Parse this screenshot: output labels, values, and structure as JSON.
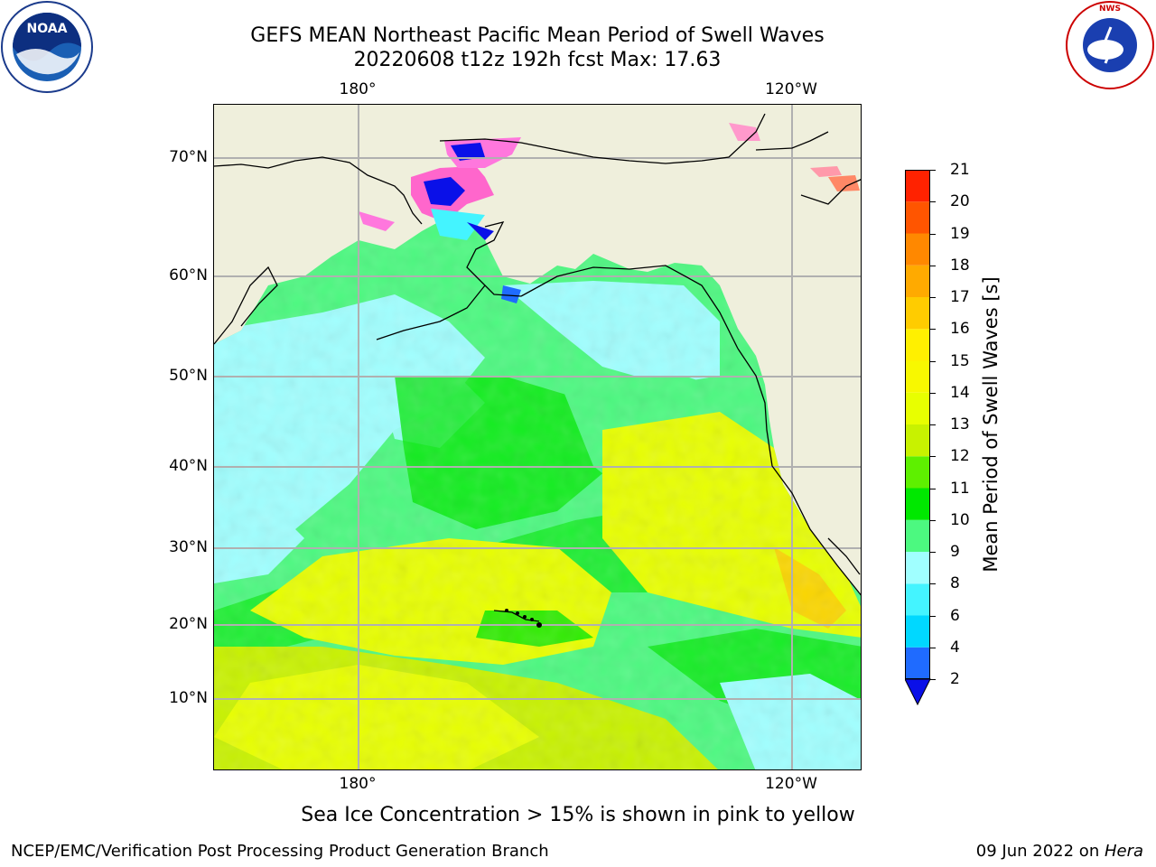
{
  "title": {
    "line1": "GEFS MEAN Northeast Pacific Mean Period of Swell Waves",
    "line2": "20220608 t12z 192h fcst   Max: 17.63"
  },
  "logos": {
    "left": {
      "icon": "noaa-logo",
      "text": "NOAA"
    },
    "right": {
      "icon": "nws-logo",
      "text": "NATIONAL WEATHER SERVICE"
    }
  },
  "map": {
    "lon_ticks_top": [
      "180°",
      "120°W"
    ],
    "lon_ticks_bottom": [
      "180°",
      "120°W"
    ],
    "lat_ticks": [
      "70°N",
      "60°N",
      "50°N",
      "40°N",
      "30°N",
      "20°N",
      "10°N"
    ],
    "colors": {
      "land": "#efefdc",
      "coast": "#000000",
      "grid": "#b0b0b0"
    }
  },
  "colorbar": {
    "label": "Mean Period of Swell Waves [s]",
    "ticks": [
      "2",
      "4",
      "6",
      "8",
      "9",
      "10",
      "11",
      "12",
      "13",
      "14",
      "15",
      "16",
      "17",
      "18",
      "19",
      "20",
      "21"
    ],
    "colors": [
      "#1f6bff",
      "#00d8ff",
      "#44f4ff",
      "#a0ffff",
      "#4cf980",
      "#00e800",
      "#5ef000",
      "#c8f200",
      "#e8ff00",
      "#f8f800",
      "#fff000",
      "#ffcc00",
      "#ffaa00",
      "#ff8800",
      "#ff5500",
      "#ff2200"
    ],
    "extend_color": "#0a10e8"
  },
  "note": "Sea Ice Concentration > 15% is shown in pink to yellow",
  "footer": {
    "left": "NCEP/EMC/Verification Post Processing Product Generation Branch",
    "right_prefix": "09 Jun 2022 on ",
    "right_host": "Hera"
  }
}
